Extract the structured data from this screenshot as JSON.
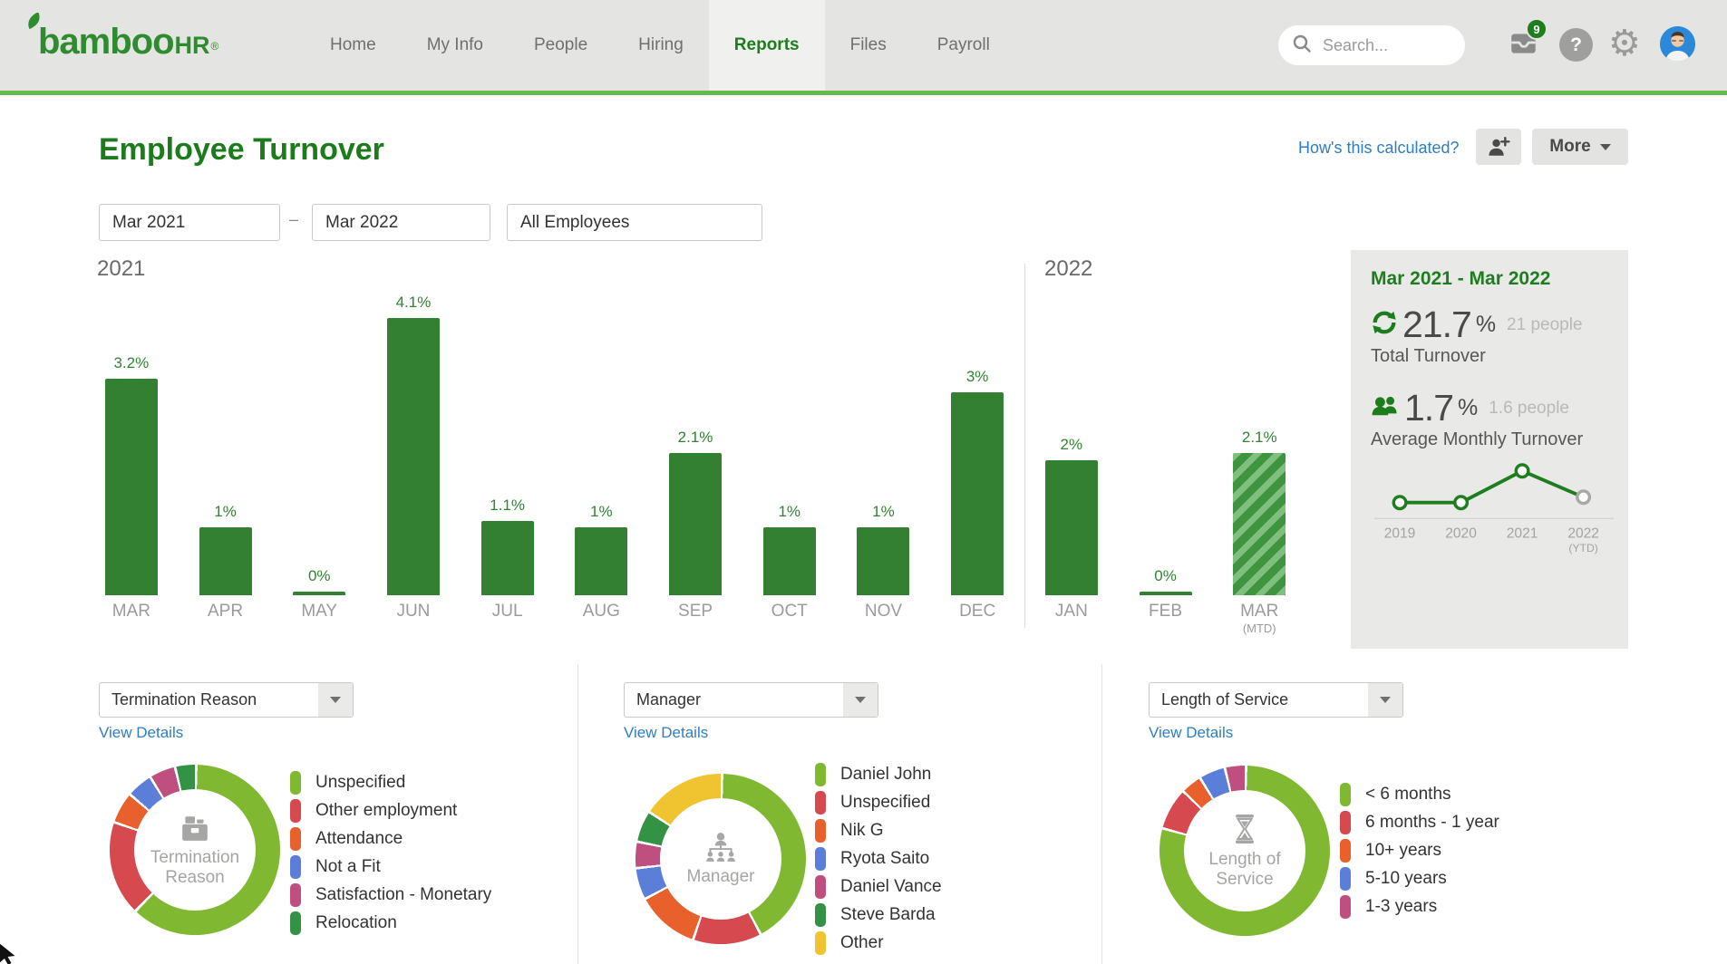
{
  "nav": {
    "logo": {
      "word": "bamboo",
      "suffix": "HR",
      "reg": "®"
    },
    "items": [
      {
        "label": "Home",
        "active": false
      },
      {
        "label": "My Info",
        "active": false
      },
      {
        "label": "People",
        "active": false
      },
      {
        "label": "Hiring",
        "active": false
      },
      {
        "label": "Reports",
        "active": true
      },
      {
        "label": "Files",
        "active": false
      },
      {
        "label": "Payroll",
        "active": false
      }
    ],
    "search_placeholder": "Search...",
    "badge_count": "9",
    "help_glyph": "?",
    "gear_glyph": "⚙"
  },
  "page": {
    "title": "Employee Turnover",
    "calc_link": "How's this calculated?",
    "more_label": "More",
    "filters": {
      "start": "Mar 2021",
      "separator": "–",
      "end": "Mar 2022",
      "audience": "All Employees"
    }
  },
  "summary": {
    "heading": "Mar 2021 - Mar 2022",
    "total": {
      "value": "21.7",
      "unit": "%",
      "people": "21 people",
      "caption": "Total Turnover"
    },
    "average": {
      "value": "1.7",
      "unit": "%",
      "people": "1.6 people",
      "caption": "Average Monthly Turnover"
    }
  },
  "breakdowns": [
    {
      "selector": "Termination Reason",
      "view_details": "View Details",
      "center_label": "Termination Reason",
      "icon": "archive-box-icon"
    },
    {
      "selector": "Manager",
      "view_details": "View Details",
      "center_label": "Manager",
      "icon": "org-chart-icon"
    },
    {
      "selector": "Length of Service",
      "view_details": "View Details",
      "center_label": "Length of Service",
      "icon": "hourglass-icon"
    }
  ],
  "chart_data": [
    {
      "id": "monthly_turnover_bar",
      "type": "bar",
      "title": "Monthly employee turnover, Mar 2021 - Mar 2022",
      "unit": "%",
      "ylim": [
        0,
        4.5
      ],
      "grid": false,
      "bar_color": "#338033",
      "groups": [
        {
          "label": "2021",
          "count": 10
        },
        {
          "label": "2022",
          "count": 3
        }
      ],
      "bars": [
        {
          "month": "MAR",
          "year": "2021",
          "value": 3.2,
          "label": "3.2%"
        },
        {
          "month": "APR",
          "year": "2021",
          "value": 1,
          "label": "1%"
        },
        {
          "month": "MAY",
          "year": "2021",
          "value": 0,
          "label": "0%"
        },
        {
          "month": "JUN",
          "year": "2021",
          "value": 4.1,
          "label": "4.1%"
        },
        {
          "month": "JUL",
          "year": "2021",
          "value": 1.1,
          "label": "1.1%"
        },
        {
          "month": "AUG",
          "year": "2021",
          "value": 1,
          "label": "1%"
        },
        {
          "month": "SEP",
          "year": "2021",
          "value": 2.1,
          "label": "2.1%"
        },
        {
          "month": "OCT",
          "year": "2021",
          "value": 1,
          "label": "1%"
        },
        {
          "month": "NOV",
          "year": "2021",
          "value": 1,
          "label": "1%"
        },
        {
          "month": "DEC",
          "year": "2021",
          "value": 3,
          "label": "3%"
        },
        {
          "month": "JAN",
          "year": "2022",
          "value": 2,
          "label": "2%"
        },
        {
          "month": "FEB",
          "year": "2022",
          "value": 0,
          "label": "0%"
        },
        {
          "month": "MAR",
          "year": "2022",
          "value": 2.1,
          "label": "2.1%",
          "sub": "(MTD)",
          "hatched": true
        }
      ]
    },
    {
      "id": "annual_turnover_line",
      "type": "line",
      "title": "Annual turnover trend",
      "x": [
        "2019",
        "2020",
        "2021",
        "2022"
      ],
      "x_sub_labels": [
        "",
        "",
        "",
        "(YTD)"
      ],
      "values_relative": [
        1.0,
        1.0,
        2.0,
        1.17
      ],
      "note": "no numeric labels shown on screen; values are relative heights estimated from the sparkline",
      "line_color": "#1e7d1e",
      "last_point_style": "gray-open"
    },
    {
      "id": "termination_reason_donut",
      "type": "pie",
      "title": "Turnover by Termination Reason",
      "note": "percentages estimated from arc angles",
      "slices": [
        {
          "label": "Unspecified",
          "color": "#80b832",
          "pct": 62
        },
        {
          "label": "Other employment",
          "color": "#d6494f",
          "pct": 18
        },
        {
          "label": "Attendance",
          "color": "#e8602c",
          "pct": 6
        },
        {
          "label": "Not a Fit",
          "color": "#5b7fd9",
          "pct": 5
        },
        {
          "label": "Satisfaction - Monetary",
          "color": "#bf4f7e",
          "pct": 5
        },
        {
          "label": "Relocation",
          "color": "#339244",
          "pct": 4
        }
      ]
    },
    {
      "id": "manager_donut",
      "type": "pie",
      "title": "Turnover by Manager",
      "note": "percentages estimated from arc angles",
      "slices": [
        {
          "label": "Daniel John",
          "color": "#80b832",
          "pct": 42
        },
        {
          "label": "Unspecified",
          "color": "#d6494f",
          "pct": 13
        },
        {
          "label": "Nik G",
          "color": "#e8602c",
          "pct": 12
        },
        {
          "label": "Ryota Saito",
          "color": "#5b7fd9",
          "pct": 6
        },
        {
          "label": "Daniel Vance",
          "color": "#bf4f7e",
          "pct": 5
        },
        {
          "label": "Steve Barda",
          "color": "#339244",
          "pct": 6
        },
        {
          "label": "Other",
          "color": "#f0c330",
          "pct": 16
        }
      ]
    },
    {
      "id": "length_of_service_donut",
      "type": "pie",
      "title": "Turnover by Length of Service",
      "note": "percentages estimated from arc angles",
      "slices": [
        {
          "label": "< 6 months",
          "color": "#80b832",
          "pct": 79
        },
        {
          "label": "6 months - 1 year",
          "color": "#d6494f",
          "pct": 8
        },
        {
          "label": "10+ years",
          "color": "#e8602c",
          "pct": 4
        },
        {
          "label": "5-10 years",
          "color": "#5b7fd9",
          "pct": 5
        },
        {
          "label": "1-3 years",
          "color": "#bf4f7e",
          "pct": 4
        }
      ]
    }
  ]
}
